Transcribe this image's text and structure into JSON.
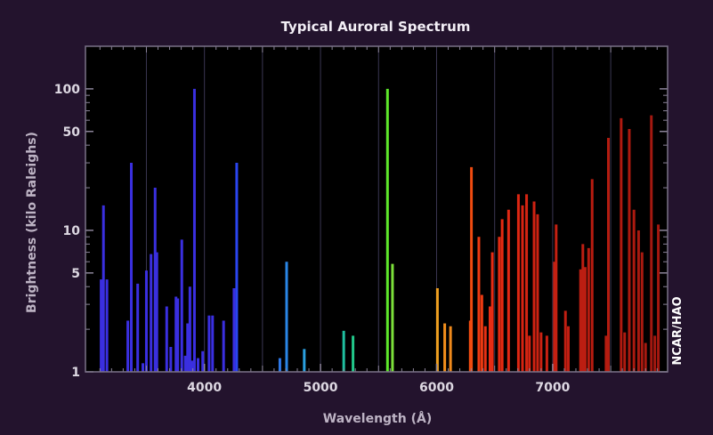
{
  "chart_data": {
    "type": "bar",
    "title": "Typical Auroral Spectrum",
    "xlabel": "Wavelength (Å)",
    "ylabel": "Brightness (kilo Raleighs)",
    "credit": "NCAR/HAO",
    "xlim": [
      2975,
      7990
    ],
    "ylim": [
      1,
      200
    ],
    "yscale": "log",
    "grid": "vertical",
    "x_ticks": [
      4000,
      5000,
      6000,
      7000
    ],
    "x_tick_labels": [
      "4000",
      "5000",
      "6000",
      "7000"
    ],
    "x_gridlines": [
      3500,
      4000,
      4500,
      5000,
      5500,
      6000,
      6500,
      7000,
      7500
    ],
    "y_ticks": [
      1,
      5,
      10,
      50,
      100
    ],
    "y_tick_labels": [
      "1",
      "5",
      "10",
      "50",
      "100"
    ],
    "lines": [
      {
        "x": 3110,
        "y": 4.5,
        "color": "#3a2fe0"
      },
      {
        "x": 3130,
        "y": 15,
        "color": "#3a2fe0"
      },
      {
        "x": 3160,
        "y": 4.5,
        "color": "#3a2fe0"
      },
      {
        "x": 3340,
        "y": 2.3,
        "color": "#3a2fe0"
      },
      {
        "x": 3370,
        "y": 30,
        "color": "#3a2fe0"
      },
      {
        "x": 3425,
        "y": 4.2,
        "color": "#3a2fe0"
      },
      {
        "x": 3470,
        "y": 1.15,
        "color": "#3a2fe0"
      },
      {
        "x": 3500,
        "y": 5.2,
        "color": "#3a2fe0"
      },
      {
        "x": 3540,
        "y": 6.8,
        "color": "#3a2fe0"
      },
      {
        "x": 3575,
        "y": 20,
        "color": "#3a2fe0"
      },
      {
        "x": 3590,
        "y": 7,
        "color": "#3a2fe0"
      },
      {
        "x": 3675,
        "y": 2.9,
        "color": "#3a2fe0"
      },
      {
        "x": 3710,
        "y": 1.5,
        "color": "#3a2fe0"
      },
      {
        "x": 3755,
        "y": 3.4,
        "color": "#3a2fe0"
      },
      {
        "x": 3770,
        "y": 3.3,
        "color": "#3a2fe0"
      },
      {
        "x": 3805,
        "y": 8.6,
        "color": "#3a2fe0"
      },
      {
        "x": 3835,
        "y": 1.3,
        "color": "#3a2fe0"
      },
      {
        "x": 3855,
        "y": 2.2,
        "color": "#3a2fe0"
      },
      {
        "x": 3875,
        "y": 4,
        "color": "#3a2fe0"
      },
      {
        "x": 3895,
        "y": 1.2,
        "color": "#3a2fe0"
      },
      {
        "x": 3914,
        "y": 100,
        "color": "#3a2fe0"
      },
      {
        "x": 3945,
        "y": 1.25,
        "color": "#3a2fe0"
      },
      {
        "x": 3985,
        "y": 1.4,
        "color": "#3a2fe0"
      },
      {
        "x": 4040,
        "y": 2.5,
        "color": "#3a2fe0"
      },
      {
        "x": 4070,
        "y": 2.5,
        "color": "#3a2fe0"
      },
      {
        "x": 4165,
        "y": 2.3,
        "color": "#3a2fe0"
      },
      {
        "x": 4255,
        "y": 3.9,
        "color": "#3a2fe0"
      },
      {
        "x": 4278,
        "y": 30,
        "color": "#2a45f0"
      },
      {
        "x": 4650,
        "y": 1.25,
        "color": "#2e78e8"
      },
      {
        "x": 4708,
        "y": 6,
        "color": "#2a86e6"
      },
      {
        "x": 4860,
        "y": 1.45,
        "color": "#2aa0e0"
      },
      {
        "x": 5200,
        "y": 1.95,
        "color": "#20c0a0"
      },
      {
        "x": 5280,
        "y": 1.8,
        "color": "#22c88a"
      },
      {
        "x": 5577,
        "y": 100,
        "color": "#5ee82a"
      },
      {
        "x": 5620,
        "y": 5.8,
        "color": "#7ce03a"
      },
      {
        "x": 6007,
        "y": 3.9,
        "color": "#f0a020"
      },
      {
        "x": 6070,
        "y": 2.2,
        "color": "#f28f1c"
      },
      {
        "x": 6120,
        "y": 2.1,
        "color": "#f08a1c"
      },
      {
        "x": 6290,
        "y": 2.3,
        "color": "#f04b10"
      },
      {
        "x": 6300,
        "y": 28,
        "color": "#f04b10"
      },
      {
        "x": 6364,
        "y": 9,
        "color": "#ec3a12"
      },
      {
        "x": 6390,
        "y": 3.5,
        "color": "#ec3a12"
      },
      {
        "x": 6420,
        "y": 2.1,
        "color": "#e83014"
      },
      {
        "x": 6460,
        "y": 2.9,
        "color": "#e82e14"
      },
      {
        "x": 6480,
        "y": 7,
        "color": "#e82c14"
      },
      {
        "x": 6540,
        "y": 9,
        "color": "#e42a12"
      },
      {
        "x": 6565,
        "y": 12,
        "color": "#e42a12"
      },
      {
        "x": 6620,
        "y": 14,
        "color": "#e02814"
      },
      {
        "x": 6705,
        "y": 18,
        "color": "#dc2612"
      },
      {
        "x": 6740,
        "y": 15,
        "color": "#d82412"
      },
      {
        "x": 6775,
        "y": 18,
        "color": "#d42412"
      },
      {
        "x": 6800,
        "y": 1.8,
        "color": "#d42412"
      },
      {
        "x": 6840,
        "y": 16,
        "color": "#d02212"
      },
      {
        "x": 6870,
        "y": 13,
        "color": "#cc2212"
      },
      {
        "x": 6900,
        "y": 1.9,
        "color": "#cc2212"
      },
      {
        "x": 6950,
        "y": 1.8,
        "color": "#c82012"
      },
      {
        "x": 7015,
        "y": 6,
        "color": "#c42012"
      },
      {
        "x": 7030,
        "y": 11,
        "color": "#c42012"
      },
      {
        "x": 7110,
        "y": 2.7,
        "color": "#c01e12"
      },
      {
        "x": 7135,
        "y": 2.1,
        "color": "#c01e12"
      },
      {
        "x": 7240,
        "y": 5.3,
        "color": "#bc1e12"
      },
      {
        "x": 7260,
        "y": 8,
        "color": "#bc1e12"
      },
      {
        "x": 7280,
        "y": 5.5,
        "color": "#bc1e12"
      },
      {
        "x": 7310,
        "y": 7.5,
        "color": "#b81c10"
      },
      {
        "x": 7340,
        "y": 23,
        "color": "#b81c10"
      },
      {
        "x": 7460,
        "y": 1.8,
        "color": "#b41c10"
      },
      {
        "x": 7480,
        "y": 45,
        "color": "#b41c10"
      },
      {
        "x": 7590,
        "y": 62,
        "color": "#b01a10"
      },
      {
        "x": 7620,
        "y": 1.9,
        "color": "#b01a10"
      },
      {
        "x": 7660,
        "y": 52,
        "color": "#ac1a10"
      },
      {
        "x": 7700,
        "y": 14,
        "color": "#ac1a10"
      },
      {
        "x": 7740,
        "y": 10,
        "color": "#a81a10"
      },
      {
        "x": 7770,
        "y": 7,
        "color": "#a81a10"
      },
      {
        "x": 7800,
        "y": 1.6,
        "color": "#a81a10"
      },
      {
        "x": 7850,
        "y": 65,
        "color": "#a41810"
      },
      {
        "x": 7880,
        "y": 1.8,
        "color": "#a41810"
      },
      {
        "x": 7910,
        "y": 11,
        "color": "#a41810"
      }
    ]
  }
}
